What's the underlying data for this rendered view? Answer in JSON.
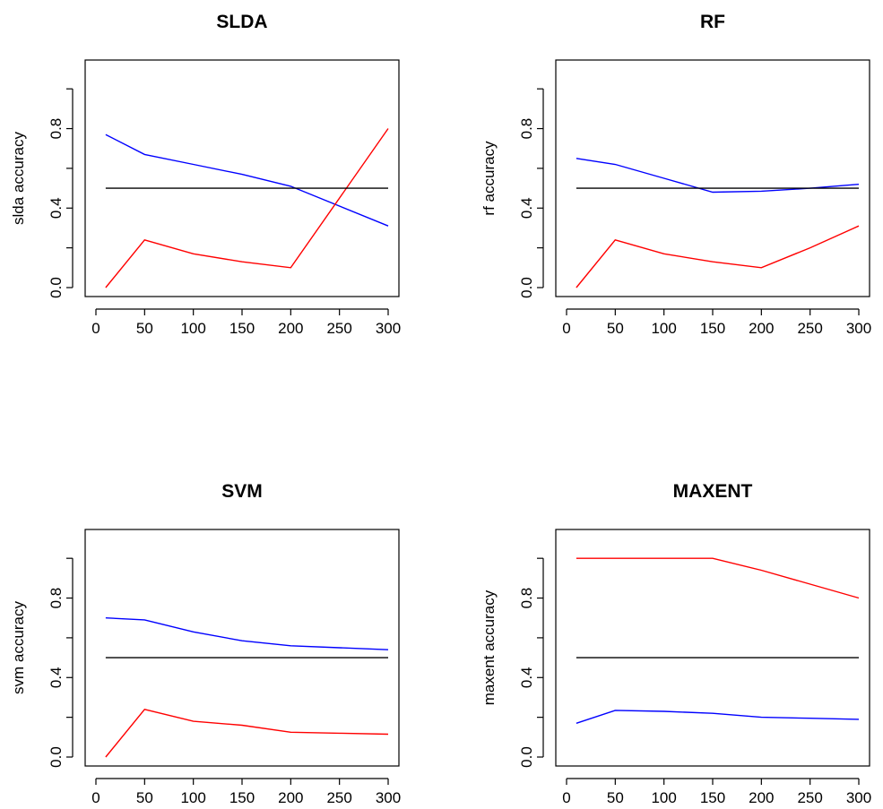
{
  "colors": {
    "baseline": "#000000",
    "red_series": "#ff0000",
    "blue_series": "#0000ff"
  },
  "chart_data": [
    {
      "type": "line",
      "title": "SLDA",
      "xlabel": "",
      "ylabel": "slda accuracy",
      "xlim": [
        0,
        300
      ],
      "ylim": [
        0,
        1.1
      ],
      "xticks": [
        0,
        50,
        100,
        150,
        200,
        250,
        300
      ],
      "yticks": [
        0,
        0.2,
        0.4,
        0.6,
        0.8,
        1.0
      ],
      "yticklabels": [
        "0.0",
        "",
        "0.4",
        "",
        "0.8",
        ""
      ],
      "x": [
        10,
        50,
        100,
        150,
        200,
        300
      ],
      "series": [
        {
          "color": "#0000ff",
          "values": [
            0.77,
            0.67,
            0.62,
            0.57,
            0.51,
            0.31
          ]
        },
        {
          "color": "#ff0000",
          "values": [
            0.0,
            0.24,
            0.17,
            0.13,
            0.1,
            0.8
          ]
        },
        {
          "color": "#000000",
          "values": [
            0.5,
            0.5,
            0.5,
            0.5,
            0.5,
            0.5
          ]
        }
      ]
    },
    {
      "type": "line",
      "title": "RF",
      "xlabel": "",
      "ylabel": "rf accuracy",
      "xlim": [
        0,
        300
      ],
      "ylim": [
        0,
        1.1
      ],
      "xticks": [
        0,
        50,
        100,
        150,
        200,
        250,
        300
      ],
      "yticks": [
        0,
        0.2,
        0.4,
        0.6,
        0.8,
        1.0
      ],
      "yticklabels": [
        "0.0",
        "",
        "0.4",
        "",
        "0.8",
        ""
      ],
      "x": [
        10,
        50,
        100,
        150,
        200,
        250,
        300
      ],
      "series": [
        {
          "color": "#0000ff",
          "values": [
            0.65,
            0.62,
            0.55,
            0.48,
            0.485,
            0.5,
            0.52
          ]
        },
        {
          "color": "#ff0000",
          "values": [
            0.0,
            0.24,
            0.17,
            0.13,
            0.1,
            0.2,
            0.31
          ]
        },
        {
          "color": "#000000",
          "values": [
            0.5,
            0.5,
            0.5,
            0.5,
            0.5,
            0.5,
            0.5
          ]
        }
      ]
    },
    {
      "type": "line",
      "title": "SVM",
      "xlabel": "",
      "ylabel": "svm accuracy",
      "xlim": [
        0,
        300
      ],
      "ylim": [
        0,
        1.1
      ],
      "xticks": [
        0,
        50,
        100,
        150,
        200,
        250,
        300
      ],
      "yticks": [
        0,
        0.2,
        0.4,
        0.6,
        0.8,
        1.0
      ],
      "yticklabels": [
        "0.0",
        "",
        "0.4",
        "",
        "0.8",
        ""
      ],
      "x": [
        10,
        50,
        100,
        150,
        200,
        250,
        300
      ],
      "series": [
        {
          "color": "#0000ff",
          "values": [
            0.7,
            0.69,
            0.63,
            0.585,
            0.56,
            0.55,
            0.54
          ]
        },
        {
          "color": "#ff0000",
          "values": [
            0.0,
            0.24,
            0.18,
            0.16,
            0.125,
            0.12,
            0.115
          ]
        },
        {
          "color": "#000000",
          "values": [
            0.5,
            0.5,
            0.5,
            0.5,
            0.5,
            0.5,
            0.5
          ]
        }
      ]
    },
    {
      "type": "line",
      "title": "MAXENT",
      "xlabel": "",
      "ylabel": "maxent accuracy",
      "xlim": [
        0,
        300
      ],
      "ylim": [
        0,
        1.1
      ],
      "xticks": [
        0,
        50,
        100,
        150,
        200,
        250,
        300
      ],
      "yticks": [
        0,
        0.2,
        0.4,
        0.6,
        0.8,
        1.0
      ],
      "yticklabels": [
        "0.0",
        "",
        "0.4",
        "",
        "0.8",
        ""
      ],
      "x": [
        10,
        50,
        100,
        150,
        200,
        250,
        300
      ],
      "series": [
        {
          "color": "#ff0000",
          "values": [
            1.0,
            1.0,
            1.0,
            1.0,
            0.94,
            0.87,
            0.8
          ]
        },
        {
          "color": "#0000ff",
          "values": [
            0.17,
            0.235,
            0.23,
            0.22,
            0.2,
            0.195,
            0.19
          ]
        },
        {
          "color": "#000000",
          "values": [
            0.5,
            0.5,
            0.5,
            0.5,
            0.5,
            0.5,
            0.5
          ]
        }
      ]
    }
  ]
}
